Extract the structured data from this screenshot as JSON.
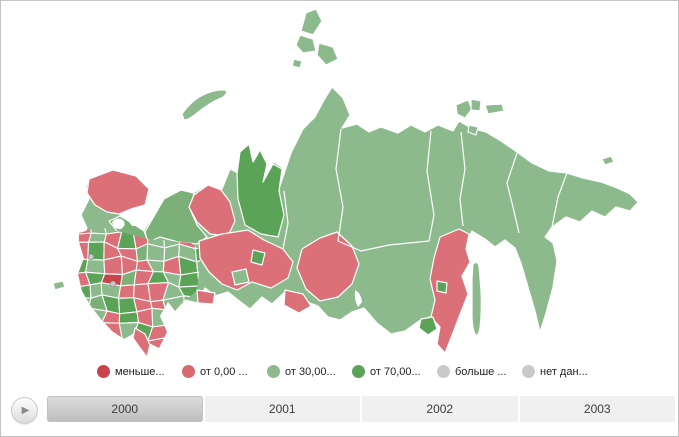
{
  "map": {
    "title": "choropleth-map-of-russia-regions",
    "palette": {
      "light_green": "#8cba8c",
      "medium_green": "#7bb178",
      "dark_green": "#5ba356",
      "light_red": "#db7078",
      "dark_red": "#c8444c",
      "region_border": "#ffffff",
      "marker_gray": "#c8c8c8"
    }
  },
  "legend": {
    "items": [
      {
        "label": "меньше...",
        "color": "#c8444c"
      },
      {
        "label": "от 0,00 ...",
        "color": "#d9696f"
      },
      {
        "label": "от 30,00...",
        "color": "#8cba8c"
      },
      {
        "label": "от 70,00...",
        "color": "#5ba356"
      },
      {
        "label": "больше ...",
        "color": "#c9c9c9"
      },
      {
        "label": "нет дан...",
        "color": "#c9c9c9"
      }
    ]
  },
  "timeline": {
    "play_icon": "▶",
    "years": [
      "2000",
      "2001",
      "2002",
      "2003"
    ],
    "selected_year": "2000"
  }
}
